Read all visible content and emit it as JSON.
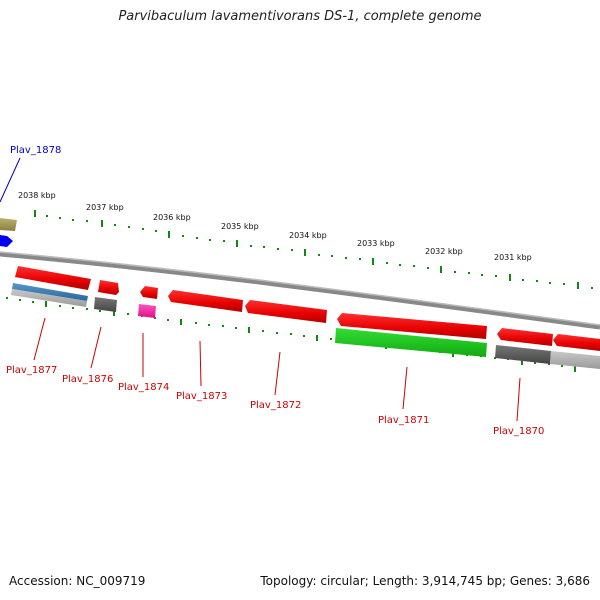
{
  "title": "Parvibaculum lavamentivorans DS-1, complete genome",
  "footer": {
    "accession": "Accession: NC_009719",
    "topology": "Topology: circular; Length: 3,914,745 bp; Genes: 3,686"
  },
  "scale_labels": [
    "2038 kbp",
    "2037 kbp",
    "2036 kbp",
    "2035 kbp",
    "2034 kbp",
    "2033 kbp",
    "2032 kbp",
    "2031 kbp"
  ],
  "genes": [
    {
      "name": "Plav_1878",
      "color": "#0000cc"
    },
    {
      "name": "Plav_1877",
      "color": "#cc0000"
    },
    {
      "name": "Plav_1876",
      "color": "#cc0000"
    },
    {
      "name": "Plav_1874",
      "color": "#cc0000"
    },
    {
      "name": "Plav_1873",
      "color": "#cc0000"
    },
    {
      "name": "Plav_1872",
      "color": "#cc0000"
    },
    {
      "name": "Plav_1871",
      "color": "#cc0000"
    },
    {
      "name": "Plav_1870",
      "color": "#cc0000"
    }
  ],
  "colors": {
    "cds": "#ff0000",
    "rna": "#22cc22",
    "pseudo": "#666666",
    "other": "#ff1493",
    "backbone": "#888888",
    "ticks": "#118811"
  }
}
